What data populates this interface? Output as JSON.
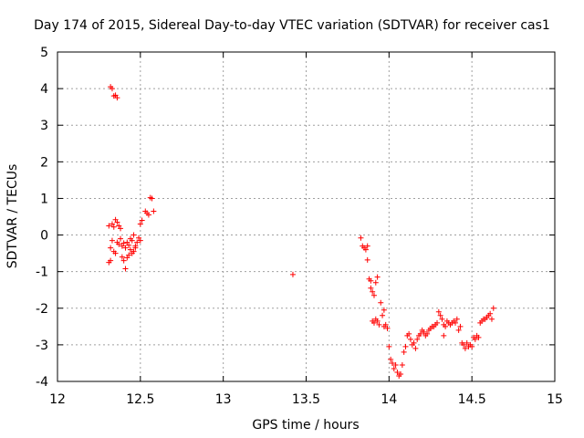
{
  "chart_data": {
    "type": "scatter",
    "title": "Day 174 of 2015, Sidereal Day-to-day VTEC variation (SDTVAR) for receiver cas1",
    "xlabel": "GPS time / hours",
    "ylabel": "SDTVAR / TECUs",
    "xlim": [
      12,
      15
    ],
    "ylim": [
      -4,
      5
    ],
    "xticks": [
      12,
      12.5,
      13,
      13.5,
      14,
      14.5,
      15
    ],
    "xtick_labels": [
      "12",
      "12.5",
      "13",
      "13.5",
      "14",
      "14.5",
      "15"
    ],
    "yticks": [
      -4,
      -3,
      -2,
      -1,
      0,
      1,
      2,
      3,
      4,
      5
    ],
    "ytick_labels": [
      "-4",
      "-3",
      "-2",
      "-1",
      "0",
      "1",
      "2",
      "3",
      "4",
      "5"
    ],
    "grid": true,
    "marker": "+",
    "color": "#ff0000",
    "series": [
      {
        "name": "SDTVAR",
        "points": [
          [
            12.32,
            4.05
          ],
          [
            12.33,
            4.0
          ],
          [
            12.34,
            3.8
          ],
          [
            12.35,
            3.82
          ],
          [
            12.36,
            3.75
          ],
          [
            12.31,
            0.25
          ],
          [
            12.33,
            0.3
          ],
          [
            12.34,
            0.22
          ],
          [
            12.35,
            0.42
          ],
          [
            12.36,
            0.35
          ],
          [
            12.37,
            0.25
          ],
          [
            12.38,
            0.18
          ],
          [
            12.32,
            -0.35
          ],
          [
            12.33,
            -0.15
          ],
          [
            12.34,
            -0.45
          ],
          [
            12.35,
            -0.5
          ],
          [
            12.36,
            -0.2
          ],
          [
            12.37,
            -0.25
          ],
          [
            12.38,
            -0.1
          ],
          [
            12.39,
            -0.3
          ],
          [
            12.4,
            -0.22
          ],
          [
            12.41,
            -0.35
          ],
          [
            12.42,
            -0.2
          ],
          [
            12.43,
            -0.28
          ],
          [
            12.44,
            -0.1
          ],
          [
            12.45,
            -0.15
          ],
          [
            12.46,
            0.0
          ],
          [
            12.47,
            -0.3
          ],
          [
            12.48,
            -0.2
          ],
          [
            12.49,
            -0.08
          ],
          [
            12.5,
            -0.15
          ],
          [
            12.31,
            -0.75
          ],
          [
            12.32,
            -0.7
          ],
          [
            12.39,
            -0.6
          ],
          [
            12.4,
            -0.7
          ],
          [
            12.41,
            -0.92
          ],
          [
            12.42,
            -0.62
          ],
          [
            12.43,
            -0.55
          ],
          [
            12.44,
            -0.4
          ],
          [
            12.45,
            -0.5
          ],
          [
            12.46,
            -0.45
          ],
          [
            12.47,
            -0.35
          ],
          [
            12.5,
            0.3
          ],
          [
            12.51,
            0.4
          ],
          [
            12.53,
            0.65
          ],
          [
            12.54,
            0.6
          ],
          [
            12.55,
            0.55
          ],
          [
            12.56,
            1.02
          ],
          [
            12.57,
            1.0
          ],
          [
            12.58,
            0.65
          ],
          [
            13.42,
            -1.08
          ],
          [
            13.83,
            -0.08
          ],
          [
            13.84,
            -0.3
          ],
          [
            13.85,
            -0.35
          ],
          [
            13.86,
            -0.4
          ],
          [
            13.87,
            -0.3
          ],
          [
            13.87,
            -0.68
          ],
          [
            13.88,
            -1.2
          ],
          [
            13.89,
            -1.25
          ],
          [
            13.89,
            -1.45
          ],
          [
            13.9,
            -1.55
          ],
          [
            13.91,
            -1.65
          ],
          [
            13.92,
            -1.3
          ],
          [
            13.93,
            -1.15
          ],
          [
            13.9,
            -2.35
          ],
          [
            13.91,
            -2.4
          ],
          [
            13.92,
            -2.3
          ],
          [
            13.93,
            -2.35
          ],
          [
            13.94,
            -2.45
          ],
          [
            13.95,
            -1.85
          ],
          [
            13.96,
            -2.2
          ],
          [
            13.97,
            -2.05
          ],
          [
            13.97,
            -2.5
          ],
          [
            13.98,
            -2.45
          ],
          [
            13.99,
            -2.55
          ],
          [
            14.0,
            -3.05
          ],
          [
            14.01,
            -3.4
          ],
          [
            14.02,
            -3.5
          ],
          [
            14.03,
            -3.65
          ],
          [
            14.04,
            -3.55
          ],
          [
            14.05,
            -3.75
          ],
          [
            14.06,
            -3.85
          ],
          [
            14.07,
            -3.8
          ],
          [
            14.08,
            -3.55
          ],
          [
            14.09,
            -3.2
          ],
          [
            14.1,
            -3.05
          ],
          [
            14.11,
            -2.75
          ],
          [
            14.12,
            -2.7
          ],
          [
            14.13,
            -2.85
          ],
          [
            14.14,
            -3.0
          ],
          [
            14.15,
            -2.95
          ],
          [
            14.16,
            -3.1
          ],
          [
            14.17,
            -2.85
          ],
          [
            14.18,
            -2.75
          ],
          [
            14.19,
            -2.7
          ],
          [
            14.2,
            -2.6
          ],
          [
            14.21,
            -2.65
          ],
          [
            14.22,
            -2.75
          ],
          [
            14.23,
            -2.7
          ],
          [
            14.24,
            -2.6
          ],
          [
            14.25,
            -2.55
          ],
          [
            14.26,
            -2.5
          ],
          [
            14.27,
            -2.5
          ],
          [
            14.28,
            -2.45
          ],
          [
            14.29,
            -2.4
          ],
          [
            14.3,
            -2.1
          ],
          [
            14.31,
            -2.2
          ],
          [
            14.32,
            -2.3
          ],
          [
            14.33,
            -2.45
          ],
          [
            14.34,
            -2.5
          ],
          [
            14.33,
            -2.75
          ],
          [
            14.35,
            -2.35
          ],
          [
            14.36,
            -2.4
          ],
          [
            14.37,
            -2.45
          ],
          [
            14.38,
            -2.4
          ],
          [
            14.39,
            -2.35
          ],
          [
            14.4,
            -2.4
          ],
          [
            14.41,
            -2.3
          ],
          [
            14.42,
            -2.6
          ],
          [
            14.43,
            -2.5
          ],
          [
            14.44,
            -2.95
          ],
          [
            14.45,
            -3.0
          ],
          [
            14.46,
            -3.1
          ],
          [
            14.47,
            -2.95
          ],
          [
            14.48,
            -3.05
          ],
          [
            14.49,
            -3.0
          ],
          [
            14.5,
            -3.05
          ],
          [
            14.51,
            -2.8
          ],
          [
            14.52,
            -2.85
          ],
          [
            14.53,
            -2.75
          ],
          [
            14.54,
            -2.8
          ],
          [
            14.55,
            -2.4
          ],
          [
            14.56,
            -2.35
          ],
          [
            14.57,
            -2.3
          ],
          [
            14.58,
            -2.3
          ],
          [
            14.59,
            -2.25
          ],
          [
            14.6,
            -2.2
          ],
          [
            14.61,
            -2.15
          ],
          [
            14.62,
            -2.3
          ],
          [
            14.63,
            -2.0
          ]
        ]
      }
    ]
  }
}
